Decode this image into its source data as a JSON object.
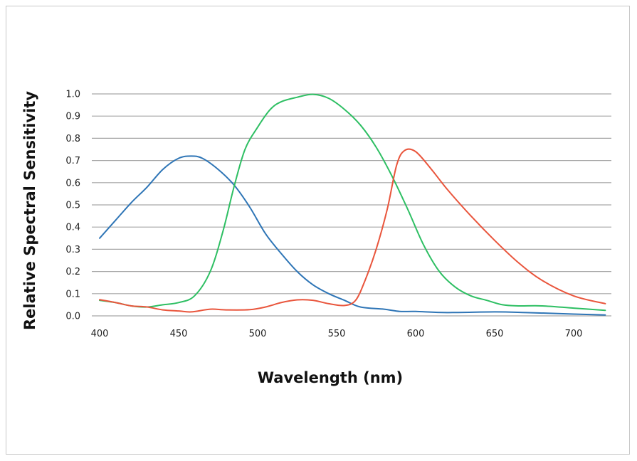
{
  "chart_data": {
    "type": "line",
    "title": "",
    "xlabel": "Wavelength (nm)",
    "ylabel": "Relative Spectral Sensitivity",
    "xlim": [
      395,
      725
    ],
    "ylim": [
      0.0,
      1.0
    ],
    "xticks": [
      400,
      450,
      500,
      550,
      600,
      650,
      700
    ],
    "xtick_labels": [
      "400",
      "450",
      "500",
      "550",
      "600",
      "650",
      "700"
    ],
    "yticks": [
      0.0,
      0.1,
      0.2,
      0.3,
      0.4,
      0.5,
      0.6,
      0.7,
      0.8,
      0.9,
      1.0
    ],
    "ytick_labels": [
      "0.0",
      "0.1",
      "0.2",
      "0.3",
      "0.4",
      "0.5",
      "0.6",
      "0.7",
      "0.8",
      "0.9",
      "1.0"
    ],
    "grid": "horizontal",
    "legend": "none",
    "series": [
      {
        "color": "#2e75b6",
        "points": [
          [
            400,
            0.35
          ],
          [
            410,
            0.43
          ],
          [
            420,
            0.51
          ],
          [
            430,
            0.58
          ],
          [
            440,
            0.66
          ],
          [
            450,
            0.71
          ],
          [
            458,
            0.72
          ],
          [
            465,
            0.71
          ],
          [
            475,
            0.66
          ],
          [
            485,
            0.59
          ],
          [
            495,
            0.49
          ],
          [
            505,
            0.37
          ],
          [
            515,
            0.28
          ],
          [
            525,
            0.2
          ],
          [
            535,
            0.14
          ],
          [
            545,
            0.1
          ],
          [
            555,
            0.07
          ],
          [
            565,
            0.04
          ],
          [
            580,
            0.03
          ],
          [
            590,
            0.02
          ],
          [
            600,
            0.02
          ],
          [
            620,
            0.015
          ],
          [
            650,
            0.018
          ],
          [
            670,
            0.015
          ],
          [
            700,
            0.008
          ],
          [
            720,
            0.004
          ]
        ]
      },
      {
        "color": "#2ebf63",
        "points": [
          [
            400,
            0.07
          ],
          [
            410,
            0.06
          ],
          [
            420,
            0.045
          ],
          [
            430,
            0.04
          ],
          [
            440,
            0.05
          ],
          [
            450,
            0.06
          ],
          [
            460,
            0.09
          ],
          [
            470,
            0.2
          ],
          [
            478,
            0.38
          ],
          [
            485,
            0.58
          ],
          [
            492,
            0.75
          ],
          [
            500,
            0.85
          ],
          [
            508,
            0.93
          ],
          [
            515,
            0.965
          ],
          [
            525,
            0.985
          ],
          [
            535,
            0.998
          ],
          [
            545,
            0.98
          ],
          [
            555,
            0.93
          ],
          [
            565,
            0.86
          ],
          [
            575,
            0.76
          ],
          [
            585,
            0.63
          ],
          [
            595,
            0.48
          ],
          [
            605,
            0.32
          ],
          [
            615,
            0.2
          ],
          [
            625,
            0.13
          ],
          [
            635,
            0.09
          ],
          [
            645,
            0.07
          ],
          [
            655,
            0.05
          ],
          [
            665,
            0.045
          ],
          [
            680,
            0.045
          ],
          [
            700,
            0.035
          ],
          [
            720,
            0.025
          ]
        ]
      },
      {
        "color": "#e9553c",
        "points": [
          [
            400,
            0.073
          ],
          [
            410,
            0.06
          ],
          [
            420,
            0.045
          ],
          [
            430,
            0.04
          ],
          [
            440,
            0.027
          ],
          [
            450,
            0.022
          ],
          [
            458,
            0.018
          ],
          [
            470,
            0.03
          ],
          [
            480,
            0.027
          ],
          [
            495,
            0.028
          ],
          [
            505,
            0.04
          ],
          [
            515,
            0.06
          ],
          [
            525,
            0.072
          ],
          [
            535,
            0.07
          ],
          [
            545,
            0.055
          ],
          [
            555,
            0.047
          ],
          [
            562,
            0.07
          ],
          [
            568,
            0.16
          ],
          [
            575,
            0.3
          ],
          [
            582,
            0.48
          ],
          [
            588,
            0.68
          ],
          [
            593,
            0.745
          ],
          [
            600,
            0.74
          ],
          [
            610,
            0.66
          ],
          [
            620,
            0.57
          ],
          [
            635,
            0.45
          ],
          [
            650,
            0.34
          ],
          [
            665,
            0.24
          ],
          [
            680,
            0.16
          ],
          [
            700,
            0.09
          ],
          [
            720,
            0.055
          ]
        ]
      }
    ]
  }
}
